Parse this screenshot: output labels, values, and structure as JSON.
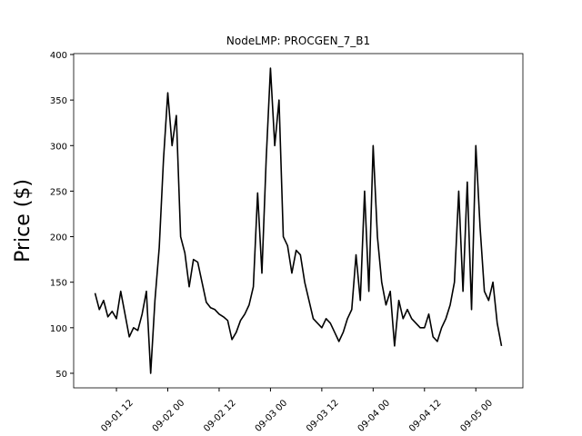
{
  "chart_data": {
    "type": "line",
    "title": "NodeLMP: PROCGEN_7_B1",
    "ylabel": "Price ($)",
    "x": [
      "09-01 07",
      "09-01 08",
      "09-01 09",
      "09-01 10",
      "09-01 11",
      "09-01 12",
      "09-01 13",
      "09-01 14",
      "09-01 15",
      "09-01 16",
      "09-01 17",
      "09-01 18",
      "09-01 19",
      "09-01 20",
      "09-01 21",
      "09-01 22",
      "09-01 23",
      "09-02 00",
      "09-02 01",
      "09-02 02",
      "09-02 03",
      "09-02 04",
      "09-02 05",
      "09-02 06",
      "09-02 07",
      "09-02 08",
      "09-02 09",
      "09-02 10",
      "09-02 11",
      "09-02 12",
      "09-02 13",
      "09-02 14",
      "09-02 15",
      "09-02 16",
      "09-02 17",
      "09-02 18",
      "09-02 19",
      "09-02 20",
      "09-02 21",
      "09-02 22",
      "09-02 23",
      "09-03 00",
      "09-03 01",
      "09-03 02",
      "09-03 03",
      "09-03 04",
      "09-03 05",
      "09-03 06",
      "09-03 07",
      "09-03 08",
      "09-03 09",
      "09-03 10",
      "09-03 11",
      "09-03 12",
      "09-03 13",
      "09-03 14",
      "09-03 15",
      "09-03 16",
      "09-03 17",
      "09-03 18",
      "09-03 19",
      "09-03 20",
      "09-03 21",
      "09-03 22",
      "09-03 23",
      "09-04 00",
      "09-04 01",
      "09-04 02",
      "09-04 03",
      "09-04 04",
      "09-04 05",
      "09-04 06",
      "09-04 07",
      "09-04 08",
      "09-04 09",
      "09-04 10",
      "09-04 11",
      "09-04 12",
      "09-04 13",
      "09-04 14",
      "09-04 15",
      "09-04 16",
      "09-04 17",
      "09-04 18",
      "09-04 19",
      "09-04 20",
      "09-04 21",
      "09-04 22",
      "09-04 23",
      "09-05 00",
      "09-05 01",
      "09-05 02",
      "09-05 03",
      "09-05 04",
      "09-05 05",
      "09-05 06"
    ],
    "series": [
      {
        "name": "NodeLMP",
        "color": "#000000",
        "values": [
          138,
          120,
          130,
          112,
          118,
          110,
          140,
          115,
          90,
          100,
          97,
          115,
          140,
          50,
          130,
          188,
          285,
          358,
          300,
          333,
          200,
          182,
          145,
          175,
          172,
          150,
          128,
          122,
          120,
          115,
          112,
          108,
          87,
          95,
          108,
          115,
          125,
          145,
          248,
          160,
          285,
          385,
          300,
          350,
          200,
          190,
          160,
          185,
          180,
          150,
          130,
          110,
          105,
          100,
          110,
          105,
          95,
          85,
          95,
          110,
          120,
          180,
          130,
          250,
          140,
          300,
          200,
          150,
          125,
          140,
          80,
          130,
          110,
          120,
          110,
          105,
          100,
          100,
          115,
          90,
          85,
          100,
          110,
          125,
          150,
          250,
          140,
          260,
          120,
          300,
          210,
          140,
          130,
          150,
          105,
          80
        ]
      }
    ],
    "xlim": [
      "09-01 02",
      "09-05 11"
    ],
    "xticks": [
      "09-01 12",
      "09-02 00",
      "09-02 12",
      "09-03 00",
      "09-03 12",
      "09-04 00",
      "09-04 12",
      "09-05 00"
    ],
    "ylim": [
      34,
      401
    ],
    "yticks": [
      50,
      100,
      150,
      200,
      250,
      300,
      350,
      400
    ],
    "grid": false
  }
}
